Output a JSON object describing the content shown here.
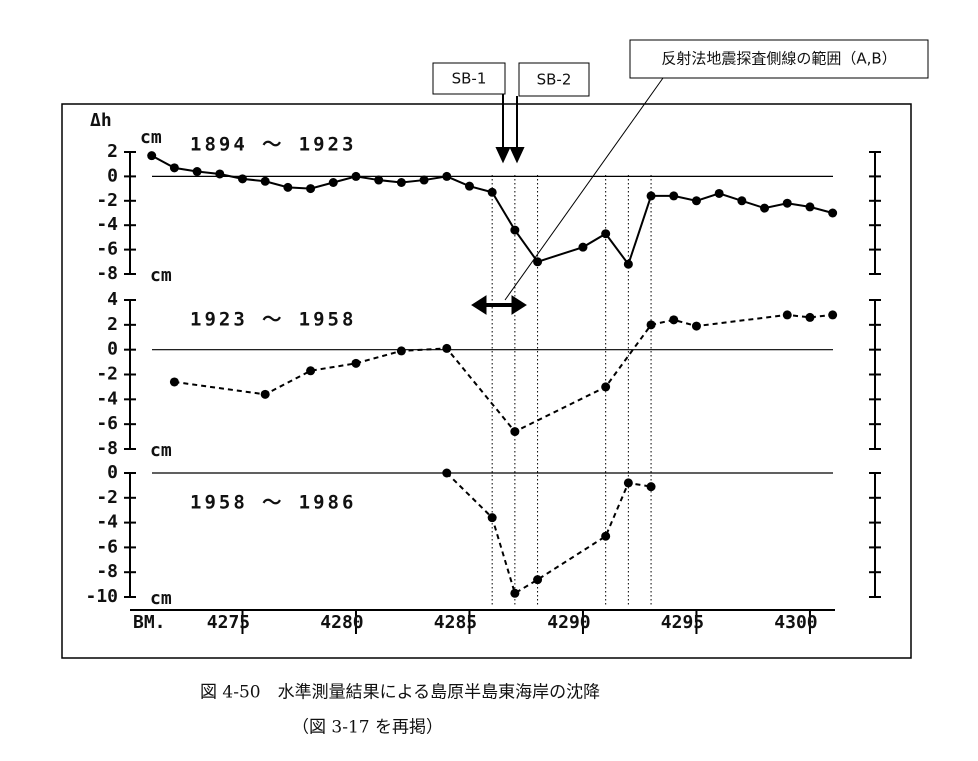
{
  "chart_data": [
    {
      "type": "line",
      "title": "1894 ～ 1923",
      "ylabel": "Δh",
      "unit": "cm",
      "x": [
        4271,
        4272,
        4273,
        4274,
        4275,
        4276,
        4277,
        4278,
        4279,
        4280,
        4281,
        4282,
        4283,
        4284,
        4285,
        4286,
        4287,
        4288,
        4290,
        4291,
        4292,
        4293,
        4294,
        4295,
        4296,
        4297,
        4298,
        4299,
        4300,
        4301
      ],
      "values": [
        1.7,
        0.7,
        0.4,
        0.2,
        -0.2,
        -0.4,
        -0.9,
        -1.0,
        -0.5,
        0.0,
        -0.3,
        -0.5,
        -0.3,
        0.0,
        -0.8,
        -1.3,
        -4.4,
        -7.0,
        -5.8,
        -4.7,
        -7.2,
        -1.6,
        -1.6,
        -2.0,
        -1.4,
        -2.0,
        -2.6,
        -2.2,
        -2.5,
        -3.0
      ],
      "ylim": [
        -8,
        2
      ],
      "yticks": [
        2,
        0,
        -2,
        -4,
        -6,
        -8
      ],
      "line_style": "solid"
    },
    {
      "type": "line",
      "title": "1923 ～ 1958",
      "unit": "cm",
      "x": [
        4272,
        4276,
        4278,
        4280,
        4282,
        4284,
        4287,
        4291,
        4293,
        4294,
        4295,
        4299,
        4300,
        4301
      ],
      "values": [
        -2.6,
        -3.6,
        -1.7,
        -1.1,
        -0.1,
        0.1,
        -6.6,
        -3.0,
        2.0,
        2.4,
        1.9,
        2.8,
        2.6,
        2.8
      ],
      "ylim": [
        -8,
        4
      ],
      "yticks": [
        4,
        2,
        0,
        -2,
        -4,
        -6,
        -8
      ],
      "line_style": "dashed"
    },
    {
      "type": "line",
      "title": "1958 ～ 1986",
      "unit": "cm",
      "xlabel": "BM.",
      "x": [
        4284,
        4286,
        4287,
        4288,
        4291,
        4292,
        4293
      ],
      "values": [
        0.0,
        -3.6,
        -9.7,
        -8.6,
        -5.1,
        -0.8,
        -1.1
      ],
      "ylim": [
        -10,
        0
      ],
      "yticks": [
        0,
        -2,
        -4,
        -6,
        -8,
        -10
      ],
      "line_style": "dashed",
      "xlim": [
        4270,
        4301.5
      ],
      "xticks": [
        4275,
        4280,
        4285,
        4290,
        4295,
        4300
      ],
      "vlines": [
        4286,
        4287,
        4288,
        4291,
        4292,
        4293
      ]
    }
  ],
  "annotations": {
    "sb1": "SB-1",
    "sb2": "SB-2",
    "range": "反射法地震探査側線の範囲（A,B）"
  },
  "caption": [
    "図 4-50　水準測量結果による島原半島東海岸の沈降",
    "（図 3-17 を再掲）"
  ]
}
